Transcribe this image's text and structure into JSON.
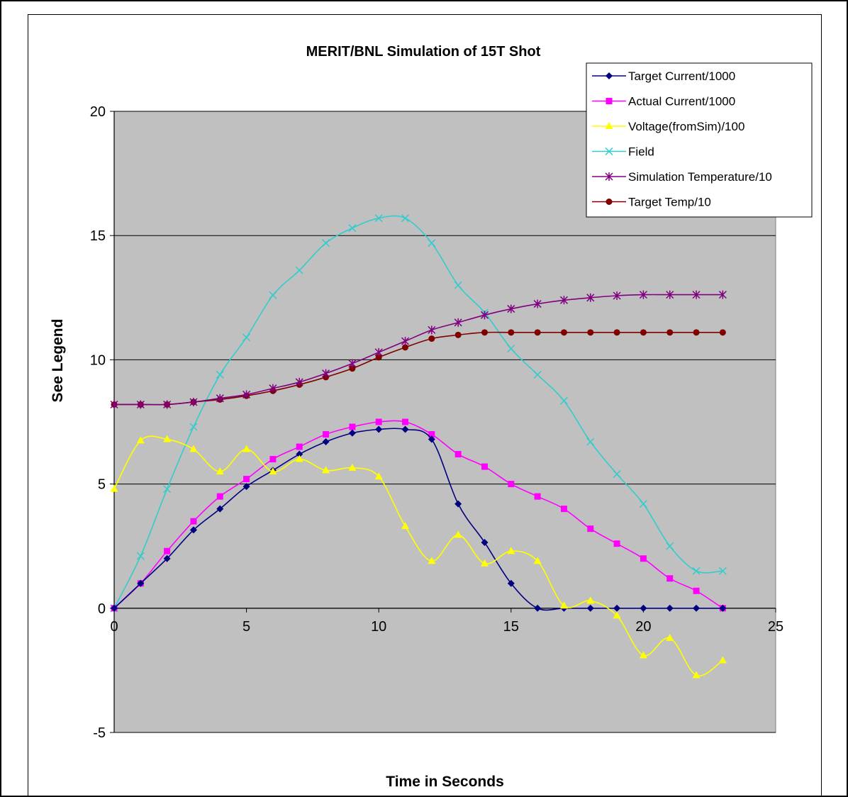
{
  "chart_data": {
    "type": "line",
    "title": "MERIT/BNL Simulation of 15T Shot",
    "xlabel": "Time in Seconds",
    "ylabel": "See Legend",
    "xlim": [
      0,
      25
    ],
    "ylim": [
      -5,
      20
    ],
    "xticks": [
      "0",
      "5",
      "10",
      "15",
      "20",
      "25"
    ],
    "yticks": [
      "-5",
      "0",
      "5",
      "10",
      "15",
      "20"
    ],
    "grid": "horizontal",
    "legend_position": "top-right",
    "background": "#c0c0c0",
    "x": [
      0,
      1,
      2,
      3,
      4,
      5,
      6,
      7,
      8,
      9,
      10,
      11,
      12,
      13,
      14,
      15,
      16,
      17,
      18,
      19,
      20,
      21,
      22,
      23
    ],
    "series": [
      {
        "name": "Target Current/1000",
        "color": "#000080",
        "marker": "diamond",
        "values": [
          0,
          1,
          2,
          3.15,
          4,
          4.9,
          5.55,
          6.2,
          6.7,
          7.05,
          7.2,
          7.2,
          6.8,
          4.2,
          2.65,
          1,
          0,
          0,
          0,
          0,
          0,
          0,
          0,
          0
        ]
      },
      {
        "name": "Actual Current/1000",
        "color": "#ff00ff",
        "marker": "square",
        "values": [
          0,
          1,
          2.3,
          3.5,
          4.5,
          5.2,
          6,
          6.5,
          7,
          7.3,
          7.5,
          7.5,
          7,
          6.2,
          5.7,
          5,
          4.5,
          4,
          3.2,
          2.6,
          2,
          1.2,
          0.7,
          0
        ]
      },
      {
        "name": "Voltage(fromSim)/100",
        "color": "#ffff00",
        "marker": "triangle",
        "values": [
          4.8,
          6.75,
          6.8,
          6.4,
          5.5,
          6.4,
          5.5,
          6,
          5.55,
          5.65,
          5.3,
          3.3,
          1.9,
          2.95,
          1.8,
          2.3,
          1.9,
          0.1,
          0.3,
          -0.3,
          -1.9,
          -1.2,
          -2.7,
          -2.1
        ]
      },
      {
        "name": "Field",
        "color": "#33cccc",
        "marker": "x",
        "values": [
          0,
          2.1,
          4.8,
          7.3,
          9.4,
          10.9,
          12.6,
          13.6,
          14.7,
          15.3,
          15.7,
          15.7,
          14.7,
          13,
          11.9,
          10.45,
          9.4,
          8.35,
          6.7,
          5.4,
          4.2,
          2.5,
          1.5,
          1.5
        ]
      },
      {
        "name": "Simulation Temperature/10",
        "color": "#800080",
        "marker": "star",
        "values": [
          8.2,
          8.2,
          8.2,
          8.3,
          8.45,
          8.6,
          8.85,
          9.1,
          9.45,
          9.85,
          10.3,
          10.75,
          11.2,
          11.5,
          11.8,
          12.05,
          12.25,
          12.4,
          12.5,
          12.58,
          12.62,
          12.62,
          12.62,
          12.62
        ]
      },
      {
        "name": "Target Temp/10",
        "color": "#800000",
        "marker": "circle",
        "values": [
          8.2,
          8.2,
          8.2,
          8.3,
          8.4,
          8.55,
          8.75,
          9,
          9.3,
          9.65,
          10.1,
          10.5,
          10.85,
          11,
          11.1,
          11.1,
          11.1,
          11.1,
          11.1,
          11.1,
          11.1,
          11.1,
          11.1,
          11.1
        ]
      }
    ]
  }
}
